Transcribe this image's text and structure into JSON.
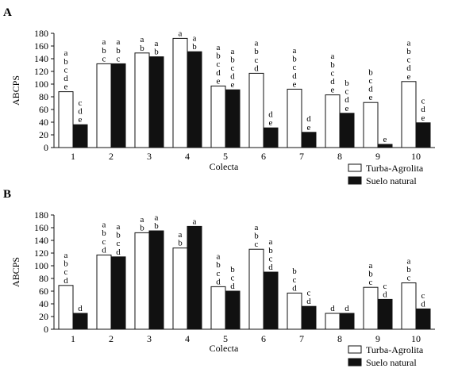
{
  "legend": {
    "series_a_label": "Turba-Agrolita",
    "series_b_label": "Suelo natural"
  },
  "colors": {
    "series_a_fill": "#ffffff",
    "series_b_fill": "#111111",
    "stroke": "#111111"
  },
  "chart_data": [
    {
      "type": "bar",
      "panel_label": "A",
      "ylabel": "ABCPS",
      "xlabel": "Colecta",
      "ylim": [
        0,
        180
      ],
      "yticks": [
        0,
        20,
        40,
        60,
        80,
        100,
        120,
        140,
        160,
        180
      ],
      "categories": [
        "1",
        "2",
        "3",
        "4",
        "5",
        "6",
        "7",
        "8",
        "9",
        "10"
      ],
      "legend_position": "bottom-right",
      "series": [
        {
          "name": "Turba-Agrolita",
          "values": [
            88,
            132,
            149,
            172,
            97,
            117,
            92,
            83,
            71,
            104
          ],
          "letters": [
            [
              "a",
              "b",
              "c",
              "d",
              "e"
            ],
            [
              "a",
              "b",
              "c"
            ],
            [
              "a",
              "b"
            ],
            [
              "a"
            ],
            [
              "a",
              "b",
              "c",
              "d",
              "e"
            ],
            [
              "a",
              "b",
              "c",
              "d"
            ],
            [
              "a",
              "b",
              "c",
              "d",
              "e"
            ],
            [
              "a",
              "b",
              "c",
              "d",
              "e"
            ],
            [
              "b",
              "c",
              "d",
              "e"
            ],
            [
              "a",
              "b",
              "c",
              "d",
              "e"
            ]
          ]
        },
        {
          "name": "Suelo natural",
          "values": [
            36,
            132,
            143,
            151,
            91,
            31,
            24,
            54,
            5,
            39
          ],
          "letters": [
            [
              "c",
              "d",
              "e"
            ],
            [
              "a",
              "b",
              "c"
            ],
            [
              "a",
              "b"
            ],
            [
              "a",
              "b"
            ],
            [
              "a",
              "b",
              "c",
              "d",
              "e"
            ],
            [
              "d",
              "e"
            ],
            [
              "d",
              "e"
            ],
            [
              "b",
              "c",
              "d",
              "e"
            ],
            [
              "e"
            ],
            [
              "c",
              "d",
              "e"
            ]
          ]
        }
      ]
    },
    {
      "type": "bar",
      "panel_label": "B",
      "ylabel": "ABCPS",
      "xlabel": "Colecta",
      "ylim": [
        0,
        180
      ],
      "yticks": [
        0,
        20,
        40,
        60,
        80,
        100,
        120,
        140,
        160,
        180
      ],
      "categories": [
        "1",
        "2",
        "3",
        "4",
        "5",
        "6",
        "7",
        "8",
        "9",
        "10"
      ],
      "legend_position": "bottom-right",
      "series": [
        {
          "name": "Turba-Agrolita",
          "values": [
            69,
            117,
            152,
            128,
            67,
            126,
            57,
            25,
            66,
            73
          ],
          "letters": [
            [
              "a",
              "b",
              "c",
              "d"
            ],
            [
              "a",
              "b",
              "c",
              "d"
            ],
            [
              "a",
              "b"
            ],
            [
              "a",
              "b"
            ],
            [
              "a",
              "b",
              "c",
              "d"
            ],
            [
              "a",
              "b",
              "c"
            ],
            [
              "b",
              "c",
              "d"
            ],
            [
              "d"
            ],
            [
              "a",
              "b",
              "c"
            ],
            [
              "a",
              "b",
              "c"
            ]
          ]
        },
        {
          "name": "Suelo natural",
          "values": [
            25,
            114,
            155,
            162,
            60,
            90,
            36,
            25,
            47,
            32
          ],
          "letters": [
            [
              "d"
            ],
            [
              "a",
              "b",
              "c",
              "d"
            ],
            [
              "a",
              "b"
            ],
            [
              "a"
            ],
            [
              "b",
              "c",
              "d"
            ],
            [
              "a",
              "b",
              "c",
              "d"
            ],
            [
              "c",
              "d"
            ],
            [
              "d"
            ],
            [
              "c",
              "d"
            ],
            [
              "c",
              "d"
            ]
          ]
        }
      ]
    }
  ]
}
